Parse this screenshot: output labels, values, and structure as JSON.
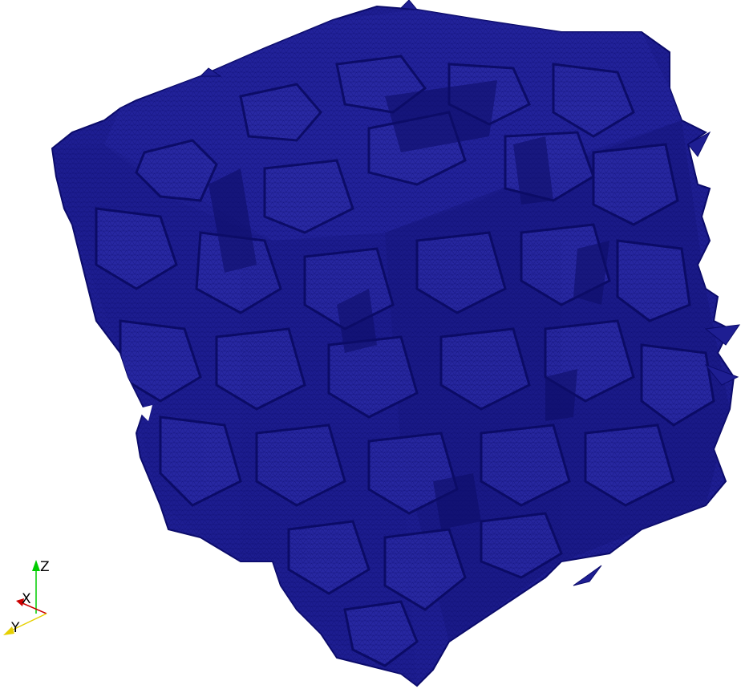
{
  "scene": {
    "background_color": "#ffffff",
    "mesh_color": "#1b1b8f",
    "mesh_edge_color": "#0b0b6a",
    "mesh_dark_color": "#10106e",
    "mesh_light_color": "#2c2ca6"
  },
  "orientation_axes": {
    "z_label": "Z",
    "x_label": "X",
    "y_label": "Y",
    "z_color": "#00cc00",
    "x_color": "#cc0000",
    "y_color": "#e6d000"
  }
}
